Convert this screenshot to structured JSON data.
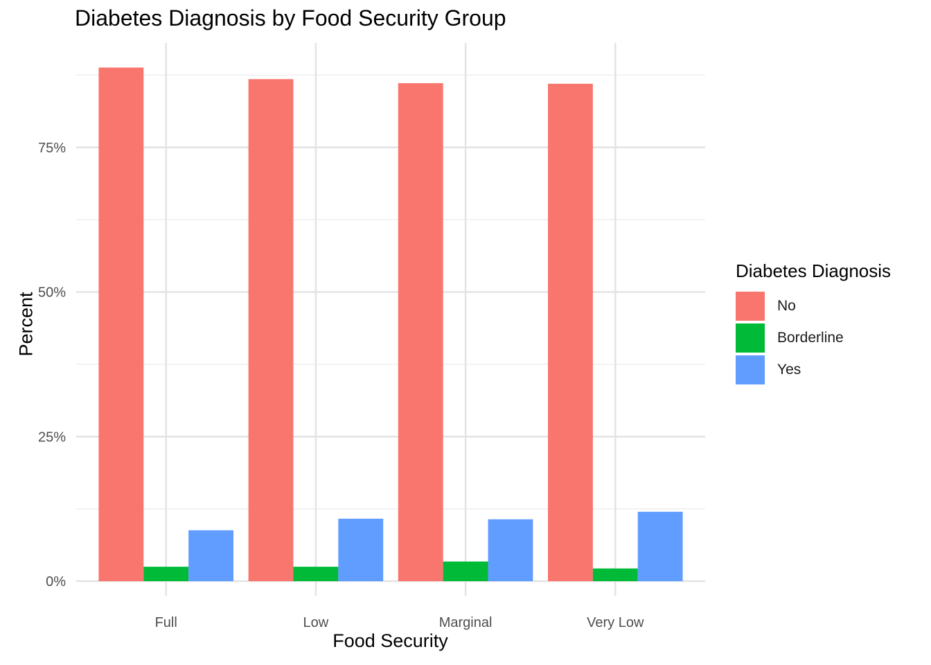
{
  "chart_data": {
    "type": "bar",
    "title": "Diabetes Diagnosis by Food Security Group",
    "xlabel": "Food Security",
    "ylabel": "Percent",
    "categories": [
      "Full",
      "Low",
      "Marginal",
      "Very Low"
    ],
    "series": [
      {
        "name": "No",
        "values": [
          88.8,
          86.8,
          86.1,
          86.0
        ],
        "color": "#F8766D"
      },
      {
        "name": "Borderline",
        "values": [
          2.5,
          2.5,
          3.4,
          2.2
        ],
        "color": "#00BA38"
      },
      {
        "name": "Yes",
        "values": [
          8.8,
          10.8,
          10.7,
          12.0
        ],
        "color": "#619CFF"
      }
    ],
    "ylim": [
      0,
      92
    ],
    "yticks": [
      0,
      25,
      50,
      75
    ],
    "ytick_labels": [
      "0%",
      "25%",
      "50%",
      "75%"
    ],
    "grid": true,
    "legend": {
      "title": "Diabetes Diagnosis",
      "position": "right"
    }
  }
}
